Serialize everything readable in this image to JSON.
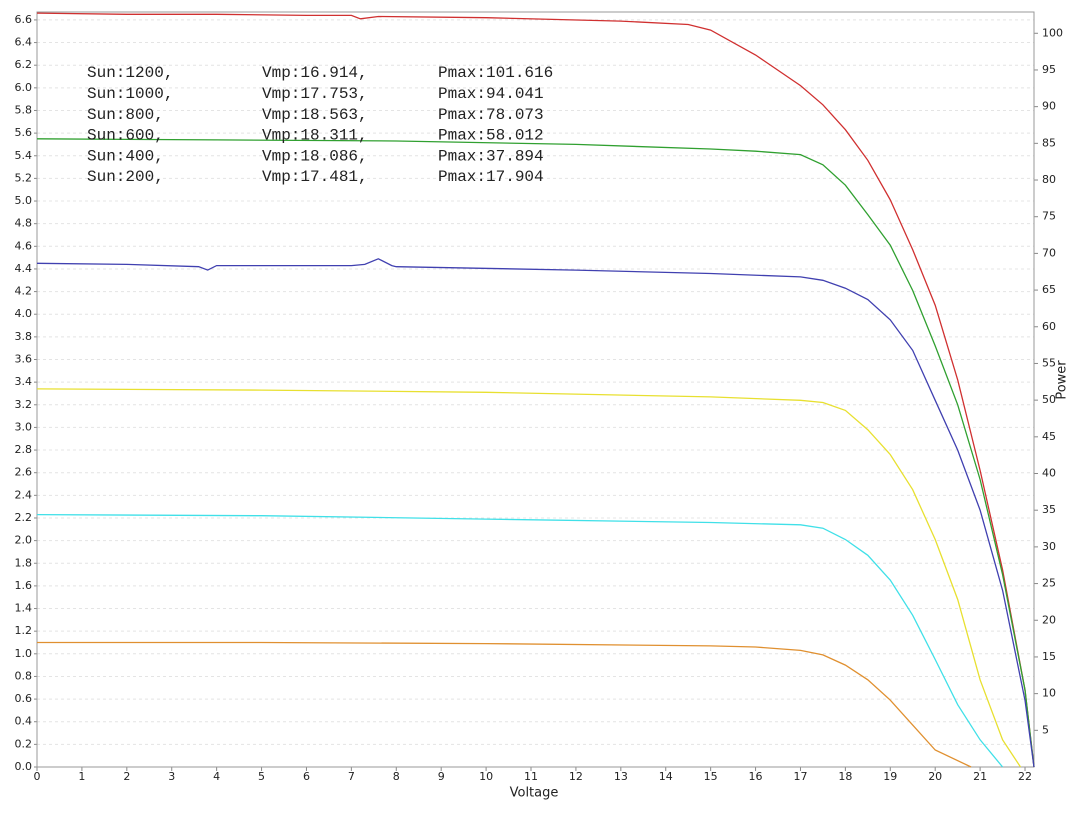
{
  "chart_data": {
    "type": "line",
    "xlabel": "Voltage",
    "y2label": "Power",
    "annotations": [
      [
        "Sun:1200,",
        "Vmp:16.914,",
        "Pmax:101.616"
      ],
      [
        "Sun:1000,",
        "Vmp:17.753,",
        "Pmax:94.041"
      ],
      [
        "Sun:800,",
        "Vmp:18.563,",
        "Pmax:78.073"
      ],
      [
        "Sun:600,",
        "Vmp:18.311,",
        "Pmax:58.012"
      ],
      [
        "Sun:400,",
        "Vmp:18.086,",
        "Pmax:37.894"
      ],
      [
        "Sun:200,",
        "Vmp:17.481,",
        "Pmax:17.904"
      ]
    ],
    "xlim": [
      0,
      22.2
    ],
    "ylim": [
      0,
      6.67
    ],
    "y2lim": [
      0,
      102.9
    ],
    "xticks": [
      0,
      1,
      2,
      3,
      4,
      5,
      6,
      7,
      8,
      9,
      10,
      11,
      12,
      13,
      14,
      15,
      16,
      17,
      18,
      19,
      20,
      21,
      22
    ],
    "yticks": [
      {
        "value": 0,
        "label": "0.0"
      },
      0.2,
      0.4,
      0.6,
      0.8,
      {
        "value": 1,
        "label": "1.0"
      },
      1.2,
      1.4,
      1.6,
      1.8,
      {
        "value": 2,
        "label": "2.0"
      },
      2.2,
      2.4,
      2.6,
      2.8,
      {
        "value": 3,
        "label": "3.0"
      },
      3.2,
      3.4,
      3.6,
      3.8,
      {
        "value": 4,
        "label": "4.0"
      },
      4.2,
      4.4,
      4.6,
      4.8,
      {
        "value": 5,
        "label": "5.0"
      },
      5.2,
      5.4,
      5.6,
      5.8,
      {
        "value": 6,
        "label": "6.0"
      },
      6.2,
      6.4,
      6.6
    ],
    "y2ticks": [
      5,
      10,
      15,
      20,
      25,
      30,
      35,
      40,
      45,
      50,
      55,
      60,
      65,
      70,
      75,
      80,
      85,
      90,
      95,
      100
    ],
    "grid": true,
    "series": [
      {
        "color": "#d03030",
        "x": [
          0,
          2,
          4,
          6,
          7,
          7.2,
          7.6,
          10,
          13,
          14.5,
          15,
          16,
          17,
          17.5,
          18,
          18.5,
          19,
          19.5,
          20,
          20.5,
          21,
          21.5,
          22,
          22.2
        ],
        "values": [
          6.66,
          6.65,
          6.65,
          6.64,
          6.64,
          6.61,
          6.63,
          6.62,
          6.59,
          6.56,
          6.51,
          6.29,
          6.02,
          5.85,
          5.63,
          5.36,
          5.01,
          4.57,
          4.08,
          3.42,
          2.62,
          1.74,
          0.68,
          0
        ]
      },
      {
        "color": "#30a030",
        "x": [
          0,
          4,
          8,
          12,
          15,
          16,
          17,
          17.5,
          18,
          18.5,
          19,
          19.5,
          20,
          20.5,
          21,
          21.5,
          22,
          22.2
        ],
        "values": [
          5.55,
          5.54,
          5.53,
          5.5,
          5.46,
          5.44,
          5.41,
          5.32,
          5.14,
          4.88,
          4.61,
          4.21,
          3.72,
          3.2,
          2.54,
          1.7,
          0.68,
          0
        ]
      },
      {
        "color": "#4040b0",
        "x": [
          0,
          2,
          3.6,
          3.8,
          4,
          7,
          7.3,
          7.6,
          7.9,
          8,
          12,
          15,
          17,
          17.5,
          18,
          18.5,
          19,
          19.5,
          20,
          20.5,
          21,
          21.5,
          22,
          22.2
        ],
        "values": [
          4.45,
          4.44,
          4.42,
          4.39,
          4.43,
          4.43,
          4.44,
          4.49,
          4.43,
          4.42,
          4.39,
          4.36,
          4.33,
          4.3,
          4.23,
          4.13,
          3.95,
          3.68,
          3.24,
          2.8,
          2.27,
          1.56,
          0.59,
          0
        ]
      },
      {
        "color": "#e8e030",
        "x": [
          0,
          5,
          10,
          15,
          17,
          17.5,
          18,
          18.5,
          19,
          19.5,
          20,
          20.5,
          21,
          21.5,
          21.9
        ],
        "values": [
          3.34,
          3.33,
          3.31,
          3.27,
          3.24,
          3.22,
          3.15,
          2.98,
          2.76,
          2.45,
          2.01,
          1.48,
          0.77,
          0.24,
          0
        ]
      },
      {
        "color": "#40e0e8",
        "x": [
          0,
          5,
          10,
          15,
          17,
          17.5,
          18,
          18.5,
          19,
          19.5,
          20,
          20.5,
          21,
          21.5
        ],
        "values": [
          2.23,
          2.22,
          2.19,
          2.16,
          2.14,
          2.11,
          2.01,
          1.87,
          1.65,
          1.34,
          0.95,
          0.55,
          0.24,
          0
        ]
      },
      {
        "color": "#e09030",
        "x": [
          0,
          5,
          10,
          15,
          16,
          17,
          17.5,
          18,
          18.5,
          19,
          19.5,
          20,
          20.8
        ],
        "values": [
          1.1,
          1.1,
          1.09,
          1.07,
          1.06,
          1.03,
          0.99,
          0.9,
          0.77,
          0.59,
          0.37,
          0.15,
          0
        ]
      }
    ]
  }
}
